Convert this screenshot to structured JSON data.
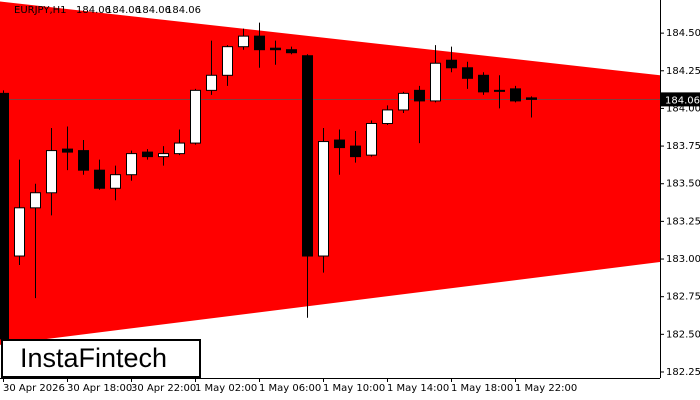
{
  "chart_data": {
    "type": "candlestick",
    "symbol": "EURJPY,H1",
    "header_values": [
      184.06,
      184.06,
      184.06,
      184.06
    ],
    "logo": "InstaFintech",
    "categories": [
      "30 Apr 2026",
      null,
      null,
      null,
      "30 Apr 18:00",
      null,
      null,
      null,
      "30 Apr 22:00",
      null,
      null,
      null,
      "1 May 02:00",
      null,
      null,
      null,
      "1 May 06:00",
      null,
      null,
      null,
      "1 May 10:00",
      null,
      null,
      null,
      "1 May 14:00",
      null,
      null,
      null,
      "1 May 18:00",
      null,
      null,
      null,
      "1 May 22:00",
      null
    ],
    "open": [
      184.1,
      183.02,
      183.34,
      183.44,
      183.73,
      183.72,
      183.59,
      183.47,
      183.56,
      183.71,
      183.68,
      183.7,
      183.77,
      184.12,
      184.22,
      184.41,
      184.48,
      184.4,
      184.39,
      184.35,
      183.02,
      183.79,
      183.75,
      183.69,
      183.9,
      183.99,
      184.12,
      184.05,
      184.32,
      184.27,
      184.22,
      184.12,
      184.13,
      184.07
    ],
    "high": [
      184.12,
      183.66,
      183.5,
      183.87,
      183.88,
      183.79,
      183.66,
      183.62,
      183.72,
      183.73,
      183.75,
      183.86,
      184.13,
      184.45,
      184.42,
      184.53,
      184.57,
      184.45,
      184.41,
      184.36,
      183.87,
      183.86,
      183.85,
      183.92,
      184.02,
      184.11,
      184.15,
      184.42,
      184.41,
      184.31,
      184.24,
      184.22,
      184.15,
      184.08
    ],
    "low": [
      182.45,
      182.96,
      182.74,
      183.29,
      183.59,
      183.56,
      183.46,
      183.39,
      183.52,
      183.66,
      183.62,
      183.69,
      183.76,
      184.09,
      184.15,
      184.39,
      184.27,
      184.29,
      184.36,
      182.61,
      182.91,
      183.56,
      183.64,
      183.68,
      183.89,
      183.97,
      183.77,
      184.04,
      184.24,
      184.13,
      184.09,
      184.0,
      184.04,
      183.94
    ],
    "close": [
      182.47,
      183.34,
      183.44,
      183.72,
      183.71,
      183.59,
      183.47,
      183.56,
      183.7,
      183.68,
      183.7,
      183.77,
      184.12,
      184.22,
      184.41,
      184.48,
      184.39,
      184.39,
      184.37,
      183.02,
      183.78,
      183.74,
      183.68,
      183.9,
      183.99,
      184.1,
      184.05,
      184.3,
      184.27,
      184.2,
      184.11,
      184.12,
      184.05,
      184.06
    ],
    "up_color": "#ffffff",
    "down_color": "#000000",
    "current_price": 184.06,
    "pattern": {
      "color": "#ff0000",
      "upper": [
        184.71,
        184.22
      ],
      "lower": [
        182.43,
        182.98
      ]
    },
    "ylim": [
      182.21,
      184.72
    ],
    "yticks": [
      {
        "value": 184.5,
        "label": "184.50"
      },
      184.25,
      {
        "value": 184.0,
        "label": "184.00"
      },
      183.75,
      {
        "value": 183.5,
        "label": "183.50"
      },
      183.25,
      {
        "value": 183.0,
        "label": "183.00"
      },
      182.75,
      {
        "value": 182.5,
        "label": "182.50"
      },
      182.25
    ]
  }
}
